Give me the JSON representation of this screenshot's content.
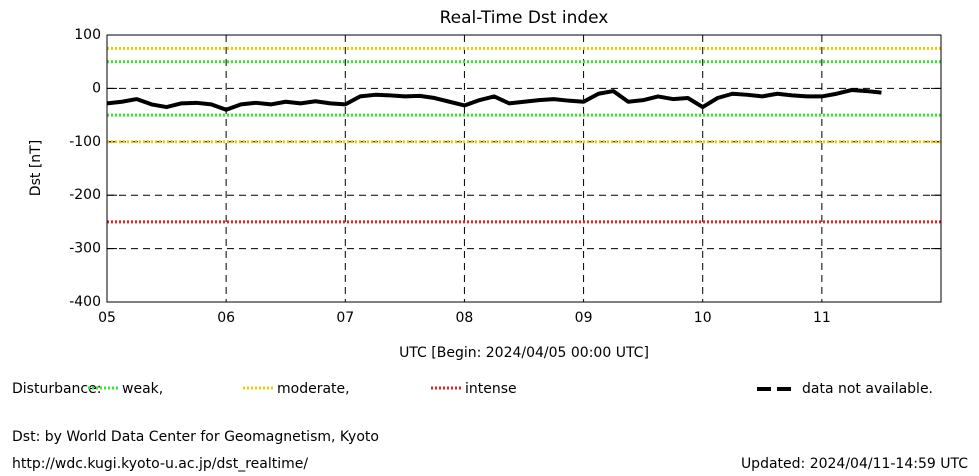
{
  "chart_data": {
    "type": "line",
    "title": "Real-Time Dst index",
    "y_label": "Dst [nT]",
    "x_label": "UTC [Begin: 2024/04/05 00:00 UTC]",
    "x": [
      0,
      3,
      6,
      9,
      12,
      15,
      18,
      21,
      24,
      27,
      30,
      33,
      36,
      39,
      42,
      45,
      48,
      51,
      54,
      57,
      60,
      63,
      66,
      69,
      72,
      75,
      78,
      81,
      84,
      87,
      90,
      93,
      96,
      99,
      102,
      105,
      108,
      111,
      114,
      117,
      120,
      123,
      126,
      129,
      132,
      135,
      138,
      141,
      144,
      147,
      150,
      153,
      156
    ],
    "series": [
      {
        "name": "Dst",
        "color": "#000000",
        "values": [
          -28,
          -25,
          -20,
          -30,
          -35,
          -28,
          -27,
          -30,
          -40,
          -30,
          -27,
          -30,
          -25,
          -28,
          -24,
          -28,
          -30,
          -15,
          -12,
          -13,
          -15,
          -14,
          -18,
          -25,
          -32,
          -22,
          -15,
          -28,
          -25,
          -22,
          -20,
          -23,
          -25,
          -10,
          -5,
          -25,
          -22,
          -15,
          -20,
          -18,
          -35,
          -18,
          -10,
          -12,
          -15,
          -10,
          -13,
          -15,
          -15,
          -10,
          -3,
          -5,
          -8
        ]
      }
    ],
    "xlim": [
      0,
      168
    ],
    "xticks": [
      {
        "value": 0,
        "label": "05"
      },
      {
        "value": 24,
        "label": "06"
      },
      {
        "value": 48,
        "label": "07"
      },
      {
        "value": 72,
        "label": "08"
      },
      {
        "value": 96,
        "label": "09"
      },
      {
        "value": 120,
        "label": "10"
      },
      {
        "value": 144,
        "label": "11"
      }
    ],
    "ylim": [
      -400,
      100
    ],
    "yticks": [
      -400,
      -300,
      -200,
      -100,
      0,
      100
    ],
    "grid": true,
    "levels": [
      {
        "name": "weak,",
        "color": "#33e633",
        "values": [
          50,
          -50
        ]
      },
      {
        "name": "moderate,",
        "color": "#f0c800",
        "values": [
          75,
          -100
        ]
      },
      {
        "name": "intense",
        "color": "#e62020",
        "values": [
          -250
        ]
      }
    ],
    "legend_title": "Disturbance:",
    "missing_label": "data not available.",
    "source": "Dst: by World Data Center for Geomagnetism, Kyoto",
    "url": "http://wdc.kugi.kyoto-u.ac.jp/dst_realtime/",
    "updated": "Updated: 2024/04/11-14:59 UTC"
  }
}
